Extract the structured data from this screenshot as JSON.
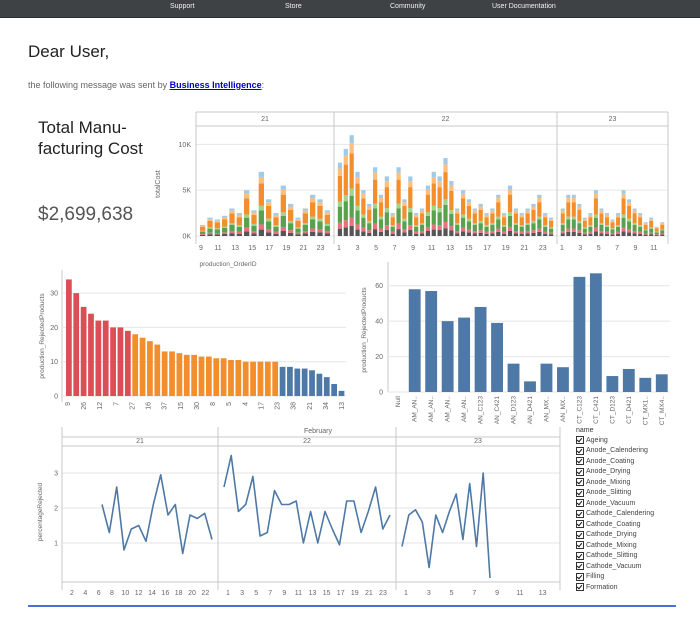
{
  "nav": {
    "items": [
      "Support",
      "Store",
      "Community",
      "User Documentation"
    ]
  },
  "email": {
    "greeting": "Dear User,",
    "message_prefix": "the following message was sent by ",
    "sender": "Business Intelligence",
    "message_suffix": ":"
  },
  "kpi": {
    "title": "Total Manu-facturing Cost",
    "value": "$2,699,638"
  },
  "colors": {
    "red": "#dc4d55",
    "orange": "#f28e2b",
    "blue": "#4e79a7",
    "line": "#4e79a7",
    "stack": [
      "#555555",
      "#e8717f",
      "#59a14f",
      "#9ed58a",
      "#f28e2b",
      "#ffbe7d",
      "#9fcbe8"
    ]
  },
  "chart_data": [
    {
      "type": "bar",
      "name": "totalCost by production_OrderID",
      "stacked": true,
      "panels": [
        "21",
        "22",
        "23"
      ],
      "xlabel": "production_OrderID",
      "ylabel": "totalCost",
      "yticks": [
        "0K",
        "5K",
        "10K"
      ],
      "ylim": [
        0,
        12000
      ],
      "x_tick_labels": [
        [
          "9",
          "11",
          "13",
          "15",
          "17",
          "19",
          "21",
          "23"
        ],
        [
          "1",
          "3",
          "5",
          "7",
          "9",
          "11",
          "13",
          "15",
          "17",
          "19",
          "21",
          "23"
        ],
        [
          "1",
          "3",
          "5",
          "7",
          "9",
          "11"
        ]
      ],
      "totals": [
        [
          1200,
          2000,
          1800,
          2200,
          3000,
          2500,
          5000,
          2800,
          7000,
          4000,
          2500,
          5500,
          3500,
          2000,
          3000,
          4500,
          4000,
          2800
        ],
        [
          8000,
          9500,
          11000,
          7000,
          5000,
          3500,
          7500,
          4500,
          6500,
          2500,
          7500,
          4000,
          6500,
          2500,
          3000,
          5500,
          7000,
          6500,
          8500,
          6000,
          3000,
          5000,
          4000,
          3000,
          3500,
          2500,
          3000,
          4500,
          2500,
          5500,
          3000,
          2500,
          3000,
          3500,
          4500,
          2500,
          2000
        ],
        [
          3000,
          4500,
          4500,
          3500,
          2000,
          2500,
          5000,
          3000,
          2500,
          1800,
          2500,
          5000,
          4000,
          3000,
          2500,
          1500,
          2000,
          1000,
          1500
        ]
      ],
      "segment_shares": [
        0.1,
        0.08,
        0.22,
        0.07,
        0.35,
        0.1,
        0.08
      ]
    },
    {
      "type": "bar",
      "name": "production_RejectedProducts (sorted)",
      "ylabel": "production_RejectedProducts",
      "yticks": [
        "0",
        "10",
        "20",
        "30"
      ],
      "ylim": [
        0,
        35
      ],
      "tick_labels": [
        "9",
        "26",
        "12",
        "7",
        "27",
        "16",
        "37",
        "15",
        "30",
        "8",
        "5",
        "4",
        "17",
        "23",
        "38",
        "21",
        "34",
        "13"
      ],
      "values": [
        34,
        30,
        26,
        24,
        22,
        22,
        20,
        20,
        19,
        18,
        17,
        16,
        15,
        13,
        13,
        12.5,
        12,
        12,
        11.5,
        11.5,
        11,
        11,
        10.5,
        10.5,
        10,
        10,
        10,
        10,
        10,
        8.5,
        8.5,
        8,
        8,
        7.5,
        6.5,
        5.5,
        3.5,
        1.5
      ],
      "groups": [
        9,
        20,
        9
      ],
      "group_colors": [
        "red",
        "orange",
        "blue"
      ]
    },
    {
      "type": "bar",
      "name": "production_RejectedProducts by line",
      "ylabel": "production_RejectedProducts",
      "yticks": [
        "0",
        "20",
        "40",
        "60"
      ],
      "ylim": [
        0,
        70
      ],
      "categories": [
        "Null",
        "AM_AN..",
        "AM_AN..",
        "AM_AN..",
        "AM_AN..",
        "AN_C123",
        "AN_C421",
        "AN_D123",
        "AN_D421",
        "AN_MX..",
        "AN_MX..",
        "CT_C123",
        "CT_C421",
        "CT_D123",
        "CT_D421",
        "CT_MX1..",
        "CT_MX4.."
      ],
      "values": [
        null,
        58,
        57,
        40,
        42,
        48,
        39,
        16,
        6,
        16,
        14,
        65,
        67,
        9,
        13,
        8,
        10
      ]
    },
    {
      "type": "line",
      "name": "percentageRejected",
      "header": "February",
      "panels": [
        "21",
        "22",
        "23"
      ],
      "ylabel": "percentageRejected",
      "yticks": [
        "1",
        "2",
        "3"
      ],
      "ylim": [
        0,
        3.6
      ],
      "x_tick_labels": [
        [
          "2",
          "4",
          "6",
          "8",
          "10",
          "12",
          "14",
          "16",
          "18",
          "20",
          "22"
        ],
        [
          "1",
          "3",
          "5",
          "7",
          "9",
          "11",
          "13",
          "15",
          "17",
          "19",
          "21",
          "23"
        ],
        [
          "1",
          "3",
          "5",
          "7",
          "9",
          "11",
          "13"
        ]
      ],
      "series": [
        [
          2.1,
          1.3,
          2.6,
          0.8,
          1.4,
          1.5,
          1.05,
          2.1,
          2.95,
          1.8,
          2.1,
          0.7,
          1.8,
          1.7,
          1.85,
          1.1
        ],
        [
          2.6,
          3.5,
          1.9,
          2.1,
          2.9,
          1.2,
          1.3,
          2.5,
          2.1,
          2.1,
          2.2,
          1.0,
          1.9,
          1.0,
          1.9,
          1.4,
          0.95,
          2.2,
          2.2,
          1.3,
          1.9,
          2.6,
          1.4,
          1.8
        ],
        [
          0.9,
          1.8,
          1.95,
          1.6,
          0.3,
          1.8,
          1.3,
          1.9,
          2.4,
          1.1,
          2.7,
          0.9,
          3.0,
          0.0
        ]
      ]
    }
  ],
  "legend": {
    "title": "name",
    "items": [
      "Ageing",
      "Anode_Calendering",
      "Anode_Coating",
      "Anode_Drying",
      "Anode_Mixing",
      "Anode_Slitting",
      "Anode_Vacuum",
      "Cathode_Calendering",
      "Cathode_Coating",
      "Cathode_Drying",
      "Cathode_Mixing",
      "Cathode_Slitting",
      "Cathode_Vacuum",
      "Filling",
      "Formation"
    ]
  }
}
